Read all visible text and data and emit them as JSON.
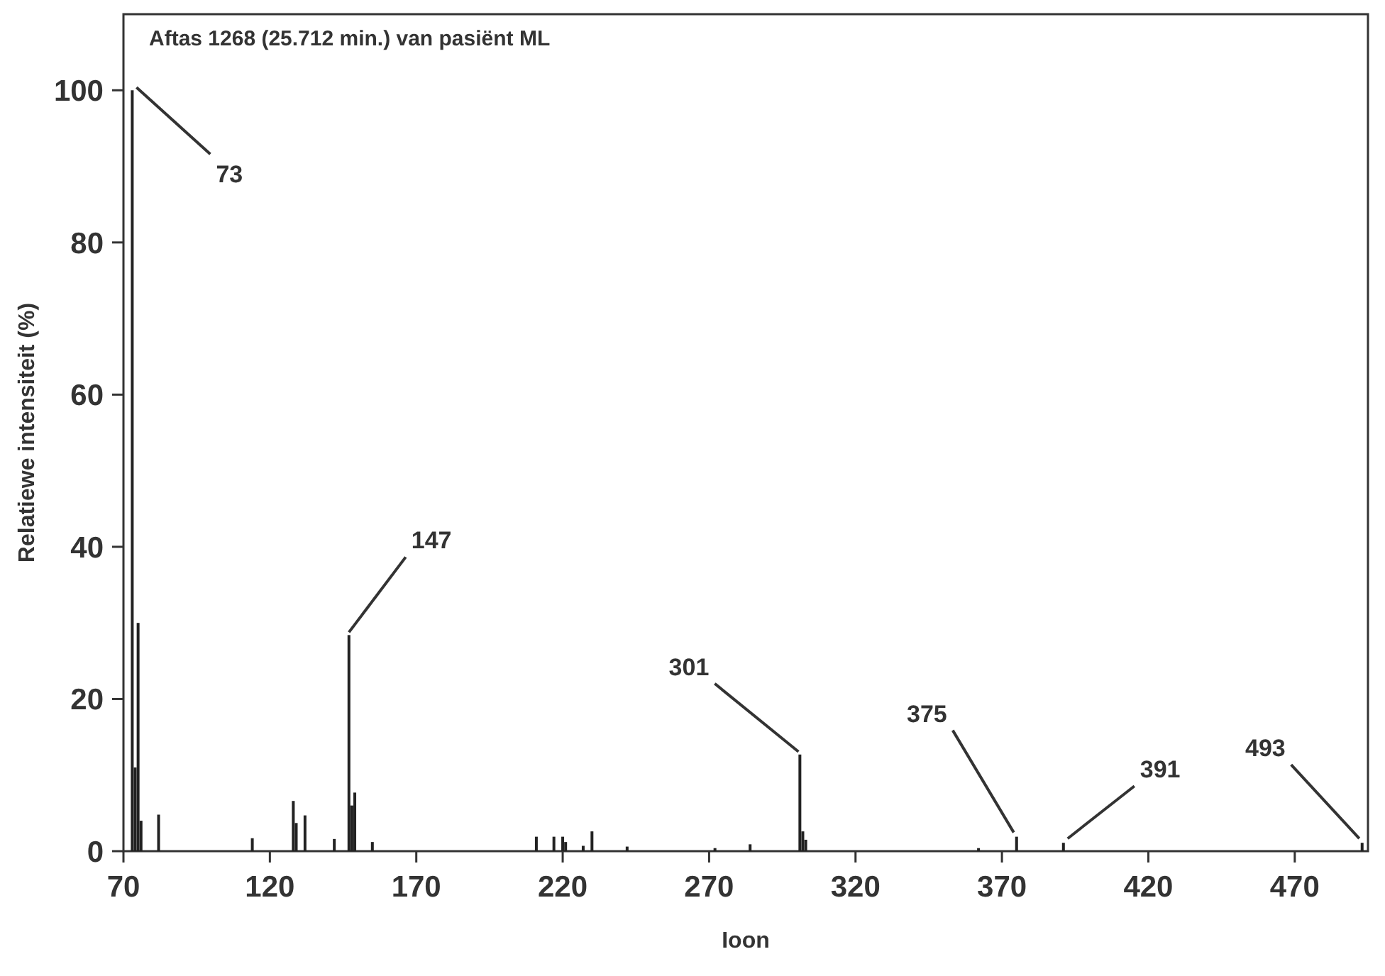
{
  "chart_data": {
    "type": "bar",
    "title": "Aftas 1268 (25.712 min.) van pasiënt ML",
    "xlabel": "Ioon",
    "ylabel": "Relatiewe intensiteit (%)",
    "x": [
      73,
      74,
      75,
      76,
      82,
      114,
      128,
      129,
      132,
      142,
      147,
      148,
      149,
      155,
      211,
      217,
      220,
      221,
      227,
      230,
      242,
      272,
      284,
      301,
      302,
      303,
      362,
      375,
      391,
      493
    ],
    "values": [
      100,
      11,
      30,
      4,
      4.8,
      1.7,
      6.6,
      3.7,
      4.7,
      1.6,
      28.4,
      6,
      7.7,
      1.2,
      1.9,
      1.9,
      1.9,
      1.2,
      0.7,
      2.6,
      0.6,
      0.4,
      0.9,
      12.7,
      2.6,
      1.5,
      0.4,
      1.9,
      1.1,
      1.1
    ],
    "color": "#222222",
    "xlim": [
      70,
      495
    ],
    "ylim": [
      0,
      110
    ],
    "xticks": [
      70,
      120,
      170,
      220,
      270,
      320,
      370,
      420,
      470
    ],
    "yticks": [
      0,
      20,
      40,
      60,
      80,
      100
    ],
    "grid": false,
    "annotations": [
      {
        "text": "73",
        "x": 73,
        "y": 100
      },
      {
        "text": "147",
        "x": 147,
        "y": 28.4
      },
      {
        "text": "301",
        "x": 301,
        "y": 12.7
      },
      {
        "text": "375",
        "x": 375,
        "y": 1.9
      },
      {
        "text": "391",
        "x": 391,
        "y": 1.1
      },
      {
        "text": "493",
        "x": 493,
        "y": 1.1
      }
    ]
  }
}
